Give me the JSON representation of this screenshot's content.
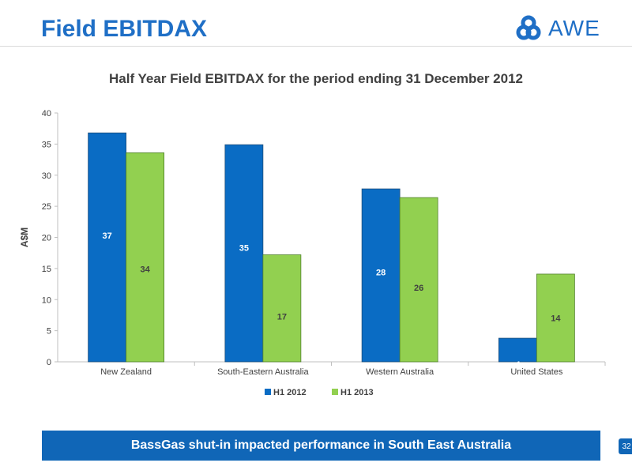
{
  "header": {
    "title": "Field EBITDAX",
    "logo_text": "AWE",
    "logo_icon": "awe-logo-icon"
  },
  "colors": {
    "title": "#1f6fc6",
    "series_h1_2012": "#0a6cc4",
    "series_h1_2013": "#92d050",
    "banner": "#1066b7"
  },
  "chart_data": {
    "type": "bar",
    "title": "Half Year Field EBITDAX for the period ending 31 December 2012",
    "xlabel": "",
    "ylabel": "A$M",
    "ylim": [
      0,
      40
    ],
    "yticks": [
      0,
      5,
      10,
      15,
      20,
      25,
      30,
      35,
      40
    ],
    "categories": [
      "New Zealand",
      "South-Eastern Australia",
      "Western Australia",
      "United States"
    ],
    "series": [
      {
        "name": "H1 2012",
        "values": [
          37,
          35,
          28,
          4
        ],
        "plotted": [
          36.8,
          34.9,
          27.8,
          3.8
        ],
        "color": "#0a6cc4"
      },
      {
        "name": "H1 2013",
        "values": [
          34,
          17,
          26,
          14
        ],
        "plotted": [
          33.6,
          17.2,
          26.4,
          14.1
        ],
        "color": "#92d050"
      }
    ],
    "grid": false,
    "legend": "bottom"
  },
  "footer": {
    "banner_text": "BassGas shut-in impacted performance in South East Australia",
    "page_number": "32"
  }
}
